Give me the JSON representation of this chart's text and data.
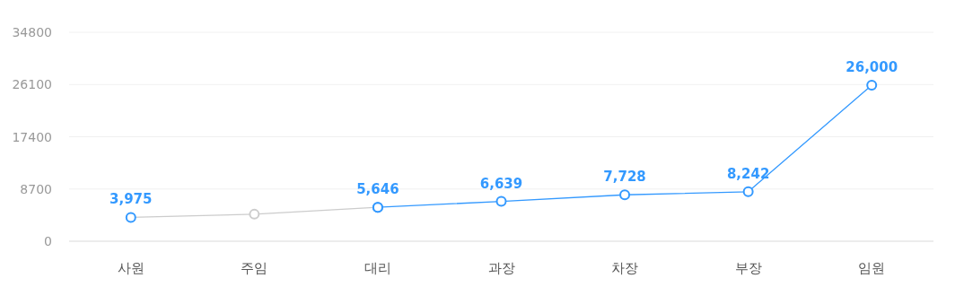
{
  "chart_data": {
    "type": "line",
    "categories": [
      "사원",
      "주임",
      "대리",
      "과장",
      "차장",
      "부장",
      "임원"
    ],
    "series": [
      {
        "color": "#cccccc",
        "colors": [
          "#3399ff",
          "#cccccc",
          "#3399ff",
          null,
          null,
          null,
          null
        ],
        "values": [
          3975,
          4500,
          5646,
          null,
          null,
          null,
          null
        ],
        "value_labels": [
          "3,975",
          null,
          null,
          null,
          null,
          null,
          null
        ]
      },
      {
        "color": "#3399ff",
        "values": [
          null,
          null,
          5646,
          6639,
          7728,
          8242,
          26000
        ],
        "value_labels": [
          null,
          null,
          "5,646",
          "6,639",
          "7,728",
          "8,242",
          "26,000"
        ]
      }
    ],
    "ylim": [
      0,
      34800
    ],
    "yticks": [
      0,
      8700,
      17400,
      26100,
      34800
    ],
    "grid": "y",
    "marker": "circle",
    "line_style": "solid"
  }
}
